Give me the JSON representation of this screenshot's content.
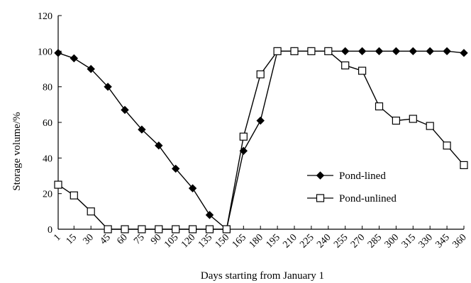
{
  "chart_data": {
    "type": "line",
    "title": "",
    "xlabel": "Days starting from January 1",
    "ylabel": "Storage volume/%",
    "x": [
      1,
      15,
      30,
      45,
      60,
      75,
      90,
      105,
      120,
      135,
      150,
      165,
      180,
      195,
      210,
      225,
      240,
      255,
      270,
      285,
      300,
      315,
      330,
      345,
      360
    ],
    "x_tick_labels": [
      "1",
      "15",
      "30",
      "45",
      "60",
      "75",
      "90",
      "105",
      "120",
      "135",
      "150",
      "165",
      "180",
      "195",
      "210",
      "225",
      "240",
      "255",
      "270",
      "285",
      "300",
      "315",
      "330",
      "345",
      "360"
    ],
    "y_ticks": [
      0,
      20,
      40,
      60,
      80,
      100,
      120
    ],
    "ylim": [
      0,
      120
    ],
    "grid": false,
    "legend_position": "center-right",
    "series": [
      {
        "name": "Pond-lined",
        "marker": "filled-diamond",
        "color": "#000000",
        "values": [
          99,
          96,
          90,
          80,
          67,
          56,
          47,
          34,
          23,
          8,
          0,
          44,
          61,
          100,
          100,
          100,
          100,
          100,
          100,
          100,
          100,
          100,
          100,
          100,
          99
        ]
      },
      {
        "name": "Pond-unlined",
        "marker": "open-square",
        "color": "#000000",
        "values": [
          25,
          19,
          10,
          0,
          0,
          0,
          0,
          0,
          0,
          0,
          0,
          52,
          87,
          100,
          100,
          100,
          100,
          92,
          89,
          69,
          61,
          62,
          58,
          47,
          36
        ]
      }
    ]
  }
}
